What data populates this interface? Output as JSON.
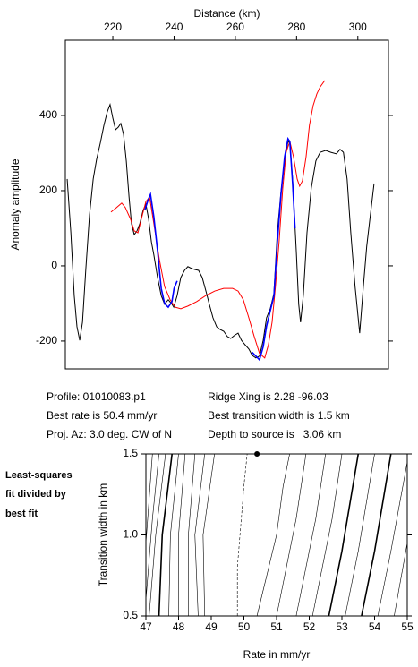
{
  "chart_data": [
    {
      "type": "line",
      "xlabel": "Distance (km)",
      "ylabel": "Anomaly amplitude",
      "xaxis_side": "top",
      "xlim": [
        204.5,
        310
      ],
      "ylim": [
        -274,
        600
      ],
      "xticks": [
        220,
        240,
        260,
        280,
        300
      ],
      "yticks": [
        -200,
        0,
        200,
        400
      ],
      "series": [
        {
          "color": "#000000",
          "x": [
            205.1,
            206.3,
            207.4,
            208.3,
            209.2,
            210.1,
            211.2,
            212.4,
            213.6,
            214.7,
            215.9,
            217.1,
            218.2,
            219.1,
            220.0,
            220.9,
            221.8,
            222.6,
            223.5,
            224.4,
            225.3,
            226.1,
            227.0,
            227.9,
            228.8,
            229.9,
            230.8,
            231.7,
            232.6,
            233.4,
            234.6,
            235.8,
            236.9,
            238.1,
            239.3,
            239.9,
            241.0,
            242.2,
            243.4,
            244.5,
            245.7,
            246.9,
            248.0,
            249.2,
            250.4,
            251.5,
            252.7,
            253.9,
            255.0,
            256.2,
            257.4,
            258.5,
            259.7,
            260.9,
            262.0,
            263.2,
            264.4,
            265.5,
            266.7,
            267.9,
            269.1,
            270.2,
            271.4,
            272.6,
            273.7,
            274.9,
            276.1,
            277.2,
            277.8,
            278.7,
            279.9,
            280.7,
            281.3,
            282.2,
            283.4,
            284.8,
            286.3,
            287.7,
            289.5,
            291.2,
            293.0,
            294.2,
            295.3,
            296.5,
            297.7,
            299.1,
            300.6,
            301.8,
            302.9,
            304.1,
            305.3
          ],
          "values": [
            231,
            88,
            -79,
            -162,
            -198,
            -150,
            -7,
            136,
            231,
            283,
            326,
            374,
            410,
            429,
            393,
            362,
            369,
            379,
            350,
            279,
            183,
            112,
            83,
            93,
            112,
            148,
            164,
            124,
            64,
            29,
            -31,
            -79,
            -102,
            -90,
            -102,
            -110,
            -79,
            -31,
            -12,
            -2,
            -7,
            -10,
            -12,
            -31,
            -67,
            -102,
            -138,
            -162,
            -169,
            -174,
            -188,
            -193,
            -185,
            -179,
            -198,
            -210,
            -221,
            -238,
            -245,
            -240,
            -198,
            -138,
            -114,
            -74,
            88,
            195,
            279,
            331,
            326,
            231,
            40,
            -102,
            -150,
            -79,
            88,
            207,
            279,
            302,
            307,
            302,
            298,
            310,
            302,
            231,
            88,
            -55,
            -179,
            -55,
            52,
            136,
            219
          ]
        },
        {
          "color": "#ff0000",
          "x": [
            219.4,
            221.2,
            222.9,
            224.1,
            225.8,
            227.0,
            228.2,
            229.3,
            230.8,
            232.0,
            233.4,
            235.2,
            236.9,
            238.7,
            240.4,
            242.2,
            244.5,
            247.4,
            250.4,
            253.3,
            256.2,
            259.1,
            260.9,
            262.6,
            264.4,
            266.1,
            267.9,
            269.6,
            270.8,
            272.0,
            273.1,
            274.3,
            275.5,
            276.6,
            277.8,
            279.0,
            280.2,
            281.0,
            281.9,
            283.1,
            284.2,
            285.4,
            286.6,
            287.7,
            289.2
          ],
          "values": [
            143,
            155,
            167,
            155,
            124,
            93,
            88,
            124,
            171,
            183,
            112,
            17,
            -55,
            -90,
            -110,
            -114,
            -107,
            -95,
            -79,
            -67,
            -60,
            -60,
            -67,
            -90,
            -138,
            -186,
            -233,
            -245,
            -210,
            -150,
            -55,
            64,
            207,
            302,
            331,
            290,
            231,
            212,
            226,
            290,
            374,
            426,
            457,
            476,
            493
          ]
        },
        {
          "color": "#0000ff",
          "x": [
            230.5,
            231.5,
            232.3,
            233.4,
            234.6,
            235.8,
            236.9,
            238.1,
            239.3,
            240.0,
            241.0
          ],
          "values": [
            150,
            175,
            190,
            130,
            40,
            -60,
            -100,
            -110,
            -95,
            -60,
            -40
          ]
        },
        {
          "color": "#0000ff",
          "x": [
            265.5,
            266.7,
            267.9,
            269.1,
            270.2,
            271.4,
            272.6,
            273.7,
            274.9,
            276.1,
            277.2,
            277.8,
            278.7,
            279.5
          ],
          "values": [
            -230,
            -240,
            -250,
            -215,
            -160,
            -120,
            -80,
            60,
            190,
            290,
            338,
            330,
            220,
            100
          ]
        }
      ]
    },
    {
      "type": "contour",
      "xlabel": "Rate in mm/yr",
      "ylabel": "Transition width in km",
      "xlim": [
        47,
        55
      ],
      "ylim": [
        0.5,
        1.5
      ],
      "xticks": [
        47,
        48,
        49,
        50,
        51,
        52,
        53,
        54,
        55
      ],
      "yticks": [
        0.5,
        {
          "value": 1,
          "label": "1.0"
        },
        1.5
      ],
      "best_fit": {
        "x": 50.4,
        "y": 1.5
      },
      "contours": [
        {
          "style": "thin",
          "x": [
            47.0,
            47.2
          ],
          "y": [
            0.95,
            1.5
          ]
        },
        {
          "style": "thin",
          "x": [
            47.0,
            47.2,
            47.4
          ],
          "y": [
            0.6,
            1.1,
            1.5
          ]
        },
        {
          "style": "thin",
          "x": [
            47.1,
            47.3,
            47.6
          ],
          "y": [
            0.5,
            1.0,
            1.5
          ]
        },
        {
          "style": "bold",
          "x": [
            47.4,
            47.5,
            47.8
          ],
          "y": [
            0.5,
            1.0,
            1.5
          ]
        },
        {
          "style": "thin",
          "x": [
            47.7,
            47.75,
            48.0
          ],
          "y": [
            0.5,
            1.0,
            1.5
          ]
        },
        {
          "style": "thin",
          "x": [
            48.0,
            48.0,
            48.2
          ],
          "y": [
            0.5,
            1.0,
            1.5
          ]
        },
        {
          "style": "thin",
          "x": [
            48.3,
            48.3,
            48.5
          ],
          "y": [
            0.5,
            1.0,
            1.5
          ]
        },
        {
          "style": "thin",
          "x": [
            48.6,
            48.5,
            48.8
          ],
          "y": [
            0.5,
            1.0,
            1.5
          ]
        },
        {
          "style": "thin",
          "x": [
            48.8,
            48.75,
            49.1
          ],
          "y": [
            0.5,
            1.0,
            1.5
          ]
        },
        {
          "style": "dashed",
          "x": [
            49.8,
            49.8,
            50.0,
            50.1
          ],
          "y": [
            0.5,
            0.8,
            1.3,
            1.5
          ]
        },
        {
          "style": "thin",
          "x": [
            50.4,
            50.7,
            51.0,
            51.2,
            51.4
          ],
          "y": [
            0.5,
            0.75,
            1.0,
            1.3,
            1.5
          ]
        },
        {
          "style": "thin",
          "x": [
            51.0,
            51.3,
            51.6,
            51.9
          ],
          "y": [
            0.5,
            0.8,
            1.1,
            1.5
          ]
        },
        {
          "style": "thin",
          "x": [
            51.6,
            51.9,
            52.2,
            52.5
          ],
          "y": [
            0.5,
            0.8,
            1.1,
            1.5
          ]
        },
        {
          "style": "thin",
          "x": [
            52.1,
            52.4,
            52.7,
            53.0
          ],
          "y": [
            0.5,
            0.8,
            1.1,
            1.5
          ]
        },
        {
          "style": "bold",
          "x": [
            52.6,
            53.0,
            53.5
          ],
          "y": [
            0.5,
            0.9,
            1.5
          ]
        },
        {
          "style": "thin",
          "x": [
            53.1,
            53.5,
            54.0
          ],
          "y": [
            0.5,
            0.9,
            1.5
          ]
        },
        {
          "style": "bold",
          "x": [
            53.6,
            54.0,
            54.5
          ],
          "y": [
            0.5,
            0.9,
            1.5
          ]
        },
        {
          "style": "thin",
          "x": [
            54.1,
            54.5,
            55.0
          ],
          "y": [
            0.5,
            0.9,
            1.45
          ]
        },
        {
          "style": "thin",
          "x": [
            54.6,
            55.0
          ],
          "y": [
            0.5,
            0.95
          ]
        }
      ]
    }
  ],
  "info": [
    "Profile: 01010083.p1",
    "Ridge Xing is 2.28 -96.03",
    "Best rate is 50.4 mm/yr",
    "Best transition width is 1.5 km",
    "Proj. Az: 3.0 deg. CW of N",
    "Depth to source is   3.06 km"
  ],
  "note": [
    "Least-squares",
    "fit divided by",
    "best fit"
  ]
}
